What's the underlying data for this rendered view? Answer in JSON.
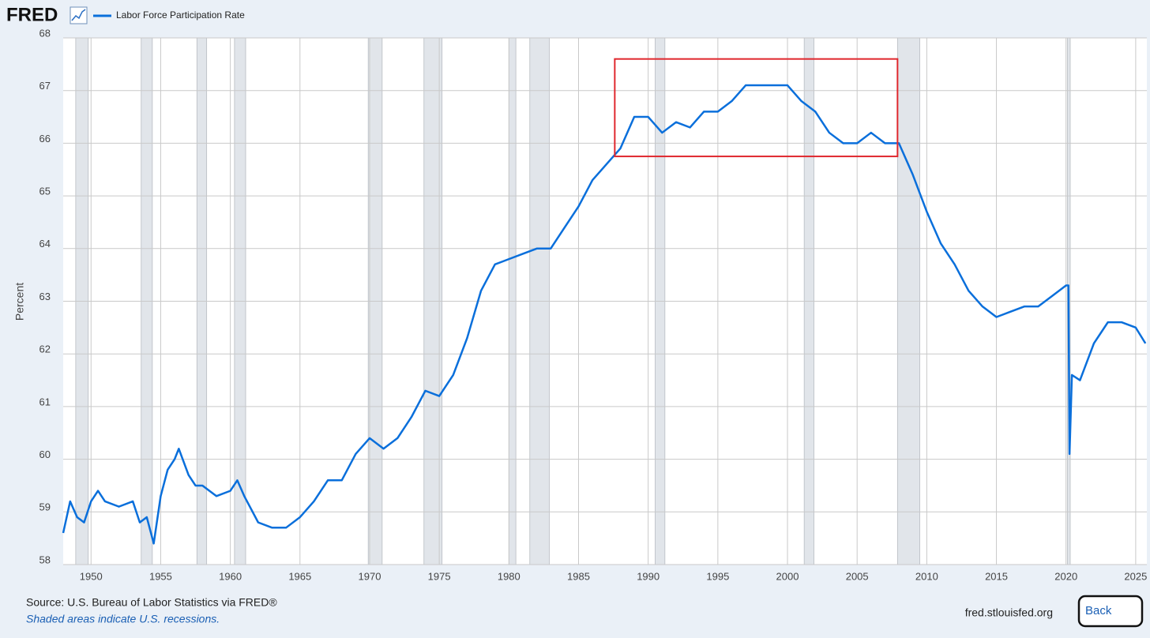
{
  "header": {
    "logo": "FRED"
  },
  "chart_data": {
    "type": "line",
    "ylabel": "Percent",
    "series": [
      {
        "name": "Labor Force Participation Rate",
        "color": "#0a6fdb",
        "x": [
          1948,
          1948.5,
          1949,
          1949.5,
          1950,
          1950.5,
          1951,
          1952,
          1953,
          1953.5,
          1954,
          1954.5,
          1955,
          1955.5,
          1956,
          1956.3,
          1957,
          1957.5,
          1958,
          1959,
          1960,
          1960.5,
          1961,
          1962,
          1963,
          1964,
          1965,
          1966,
          1967,
          1968,
          1969,
          1970,
          1971,
          1972,
          1973,
          1974,
          1975,
          1976,
          1977,
          1978,
          1979,
          1980,
          1981,
          1982,
          1983,
          1984,
          1985,
          1986,
          1987,
          1988,
          1989,
          1990,
          1991,
          1992,
          1993,
          1994,
          1995,
          1996,
          1997,
          1998,
          1999,
          2000,
          2001,
          2002,
          2003,
          2004,
          2005,
          2006,
          2007,
          2008,
          2009,
          2010,
          2011,
          2012,
          2013,
          2014,
          2015,
          2016,
          2017,
          2018,
          2019,
          2020,
          2020.17,
          2020.25,
          2020.42,
          2021,
          2022,
          2023,
          2024,
          2025,
          2025.7
        ],
        "values": [
          58.6,
          59.2,
          58.9,
          58.8,
          59.2,
          59.4,
          59.2,
          59.1,
          59.2,
          58.8,
          58.9,
          58.4,
          59.3,
          59.8,
          60.0,
          60.2,
          59.7,
          59.5,
          59.5,
          59.3,
          59.4,
          59.6,
          59.3,
          58.8,
          58.7,
          58.7,
          58.9,
          59.2,
          59.6,
          59.6,
          60.1,
          60.4,
          60.2,
          60.4,
          60.8,
          61.3,
          61.2,
          61.6,
          62.3,
          63.2,
          63.7,
          63.8,
          63.9,
          64.0,
          64.0,
          64.4,
          64.8,
          65.3,
          65.6,
          65.9,
          66.5,
          66.5,
          66.2,
          66.4,
          66.3,
          66.6,
          66.6,
          66.8,
          67.1,
          67.1,
          67.1,
          67.1,
          66.8,
          66.6,
          66.2,
          66.0,
          66.0,
          66.2,
          66.0,
          66.0,
          65.4,
          64.7,
          64.1,
          63.7,
          63.2,
          62.9,
          62.7,
          62.8,
          62.9,
          62.9,
          63.1,
          63.3,
          63.3,
          60.1,
          61.6,
          61.5,
          62.2,
          62.6,
          62.6,
          62.5,
          62.2
        ]
      }
    ],
    "xlim": [
      1948,
      2025.8
    ],
    "xticks": [
      1950,
      1955,
      1960,
      1965,
      1970,
      1975,
      1980,
      1985,
      1990,
      1995,
      2000,
      2005,
      2010,
      2015,
      2020,
      2025
    ],
    "ylim": [
      58,
      68
    ],
    "yticks": [
      58,
      59,
      60,
      61,
      62,
      63,
      64,
      65,
      66,
      67,
      68
    ],
    "grid": true,
    "recessions": [
      [
        1948.9,
        1949.8
      ],
      [
        1953.6,
        1954.4
      ],
      [
        1957.6,
        1958.3
      ],
      [
        1960.3,
        1961.1
      ],
      [
        1969.9,
        1970.9
      ],
      [
        1973.9,
        1975.2
      ],
      [
        1980.0,
        1980.5
      ],
      [
        1981.5,
        1982.9
      ],
      [
        1990.5,
        1991.2
      ],
      [
        2001.2,
        2001.9
      ],
      [
        2007.9,
        2009.5
      ],
      [
        2020.1,
        2020.3
      ]
    ],
    "recession_color": "#e1e5ea",
    "highlight_box": {
      "x": [
        1987.6,
        2007.9
      ],
      "y": [
        65.75,
        67.6
      ],
      "color": "#e0282e"
    }
  },
  "footer": {
    "source": "Source: U.S. Bureau of Labor Statistics via FRED®",
    "note": "Shaded areas indicate U.S. recessions.",
    "site": "fred.stlouisfed.org",
    "button": "Back"
  }
}
